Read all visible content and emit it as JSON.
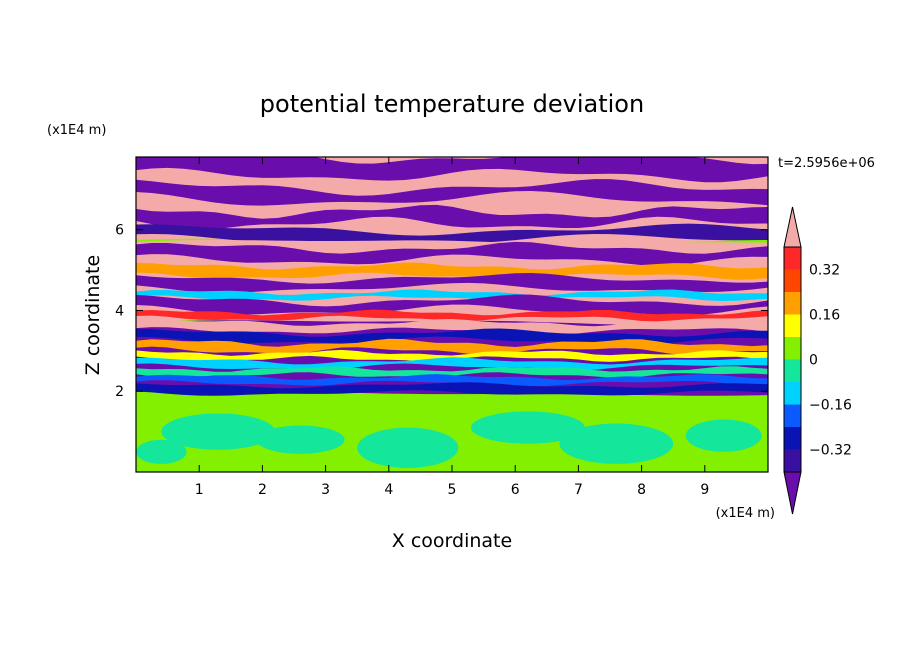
{
  "chart_data": {
    "type": "heatmap",
    "title": "potential temperature deviation",
    "xlabel": "X coordinate",
    "ylabel": "Z coordinate",
    "x_unit": "(x1E4 m)",
    "y_unit": "(x1E4 m)",
    "time_label": "t=2.5956e+06",
    "xlim": [
      0,
      10
    ],
    "ylim": [
      0,
      7.8
    ],
    "x_ticks": [
      "1",
      "2",
      "3",
      "4",
      "5",
      "6",
      "7",
      "8",
      "9"
    ],
    "y_ticks": [
      "2",
      "4",
      "6"
    ],
    "grid": false,
    "colorbar": {
      "position": "right",
      "extend": "both",
      "levels": [
        -0.4,
        -0.32,
        -0.24,
        -0.16,
        -0.08,
        0,
        0.08,
        0.16,
        0.24,
        0.32,
        0.4
      ],
      "tick_labels": [
        "0.32",
        "0.16",
        "0",
        "−0.16",
        "−0.32"
      ],
      "tick_values": [
        0.32,
        0.16,
        0,
        -0.16,
        -0.32
      ],
      "colors": [
        "#6a0dad",
        "#3a10a0",
        "#0a14b4",
        "#0a5aff",
        "#00d2ff",
        "#14e69b",
        "#82f000",
        "#ffff00",
        "#ffa000",
        "#ff4600",
        "#ff2828",
        "#f5aaaa"
      ]
    },
    "bands": [
      {
        "z": [
          0,
          1.95
        ],
        "pattern": "green-mix"
      },
      {
        "z": [
          1.95,
          3.7
        ],
        "pattern": "mixed-turbulent"
      },
      {
        "z": [
          3.7,
          5.7
        ],
        "pattern": "purple-pink-layers"
      },
      {
        "z": [
          5.7,
          7.8
        ],
        "pattern": "purple-pink-large"
      }
    ]
  }
}
